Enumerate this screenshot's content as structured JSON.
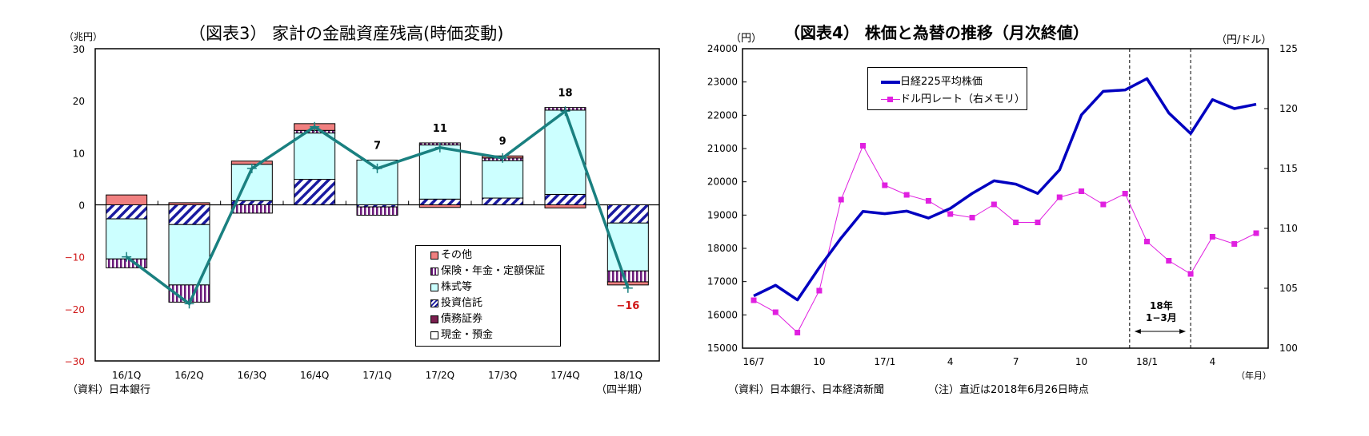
{
  "left": {
    "title": "（図表3） 家計の金融資産残高(時価変動)",
    "unit": "（兆円）",
    "source": "（資料）日本銀行",
    "xunit": "（四半期）",
    "legend": [
      "その他",
      "保険・年金・定額保証",
      "株式等",
      "投資信託",
      "債務証券",
      "現金・預金"
    ]
  },
  "right": {
    "title": "（図表4） 株価と為替の推移（月次終値）",
    "unit_left": "（円）",
    "unit_right": "（円/ドル）",
    "xunit": "（年月）",
    "source": "（資料）日本銀行、日本経済新聞",
    "note": "（注）直近は2018年6月26日時点",
    "legend": [
      "日経225平均株価",
      "ドル円レート（右メモリ）"
    ],
    "annotation_line1": "18年",
    "annotation_line2": "1−3月"
  },
  "chart_data": [
    {
      "type": "bar",
      "subtype": "stacked-bar-with-line",
      "title": "（図表3） 家計の金融資産残高(時価変動)",
      "xlabel": "（四半期）",
      "ylabel": "（兆円）",
      "ylim": [
        -30,
        30
      ],
      "yticks": [
        -30,
        -20,
        -10,
        0,
        10,
        20,
        30
      ],
      "negative_tick_color": "#d01818",
      "categories": [
        "16/1Q",
        "16/2Q",
        "16/3Q",
        "16/4Q",
        "17/1Q",
        "17/2Q",
        "17/3Q",
        "17/4Q",
        "18/1Q"
      ],
      "series": [
        {
          "name": "現金・預金",
          "color": "#ffffff",
          "values": [
            0,
            0,
            0,
            0,
            0,
            0,
            0,
            0,
            0
          ]
        },
        {
          "name": "債務証券",
          "color": "#7b2050",
          "values": [
            0,
            0,
            0,
            0,
            0,
            0,
            0,
            0,
            0
          ]
        },
        {
          "name": "投資信託",
          "color": "#1a1aa0",
          "pattern": "diagonal",
          "values": [
            -2.7,
            -3.8,
            0.8,
            4.9,
            -0.4,
            1.1,
            1.3,
            2.0,
            -3.5
          ]
        },
        {
          "name": "株式等",
          "color": "#ccffff",
          "values": [
            -7.7,
            -11.6,
            7.0,
            8.9,
            8.6,
            10.4,
            7.2,
            16.2,
            -9.2
          ]
        },
        {
          "name": "保険・年金・定額保証",
          "color": "#6a1a7a",
          "pattern": "vertical",
          "values": [
            -1.7,
            -3.3,
            -1.6,
            0.5,
            -1.6,
            0.4,
            0.5,
            0.5,
            -2.1
          ]
        },
        {
          "name": "その他",
          "color": "#f08080",
          "values": [
            1.9,
            0.4,
            0.6,
            1.3,
            0,
            -0.5,
            0.4,
            -0.6,
            -0.6
          ]
        }
      ],
      "total_line": {
        "name": "合計",
        "color": "#1a8080",
        "values": [
          -10,
          -19,
          7,
          15,
          7,
          11,
          9,
          18,
          -16
        ]
      },
      "data_labels": {
        "17/1Q": "7",
        "17/2Q": "11",
        "17/3Q": "9",
        "17/4Q": "18",
        "18/1Q": "−16"
      },
      "legend_position": "inside-bottom-right"
    },
    {
      "type": "line",
      "title": "（図表4） 株価と為替の推移（月次終値）",
      "xlabel": "（年月）",
      "ylabel": "（円）",
      "ylabel_right": "（円/ドル）",
      "ylim": [
        15000,
        24000
      ],
      "ylim_right": [
        100,
        125
      ],
      "yticks": [
        15000,
        16000,
        17000,
        18000,
        19000,
        20000,
        21000,
        22000,
        23000,
        24000
      ],
      "yticks_right": [
        100,
        105,
        110,
        115,
        120,
        125
      ],
      "x": [
        "16/7",
        "16/8",
        "16/9",
        "16/10",
        "16/11",
        "16/12",
        "17/1",
        "17/2",
        "17/3",
        "17/4",
        "17/5",
        "17/6",
        "17/7",
        "17/8",
        "17/9",
        "17/10",
        "17/11",
        "17/12",
        "18/1",
        "18/2",
        "18/3",
        "18/4",
        "18/5",
        "18/6"
      ],
      "xtick_labels": {
        "0": "16/7",
        "3": "10",
        "6": "17/1",
        "9": "4",
        "12": "7",
        "15": "10",
        "18": "18/1",
        "21": "4"
      },
      "series": [
        {
          "name": "日経225平均株価",
          "axis": "left",
          "color": "#0000c0",
          "values": [
            16570,
            16890,
            16450,
            17420,
            18310,
            19110,
            19040,
            19120,
            18910,
            19200,
            19650,
            20030,
            19930,
            19650,
            20360,
            22010,
            22720,
            22760,
            23100,
            22070,
            21450,
            22470,
            22200,
            22330
          ]
        },
        {
          "name": "ドル円レート（右メモリ）",
          "axis": "right",
          "color": "#e020e0",
          "marker": "square",
          "values": [
            104.0,
            103.0,
            101.3,
            104.8,
            112.4,
            116.9,
            113.6,
            112.8,
            112.3,
            111.2,
            110.9,
            112.0,
            110.5,
            110.5,
            112.6,
            113.1,
            112.0,
            112.9,
            108.9,
            107.3,
            106.2,
            109.3,
            108.7,
            109.6
          ]
        }
      ],
      "annotations": [
        {
          "type": "span",
          "from": "17/12",
          "to": "18/3",
          "label": "18年 1−3月",
          "style": "dashed-vertical-lines"
        }
      ],
      "legend_position": "inside-top-left"
    }
  ]
}
